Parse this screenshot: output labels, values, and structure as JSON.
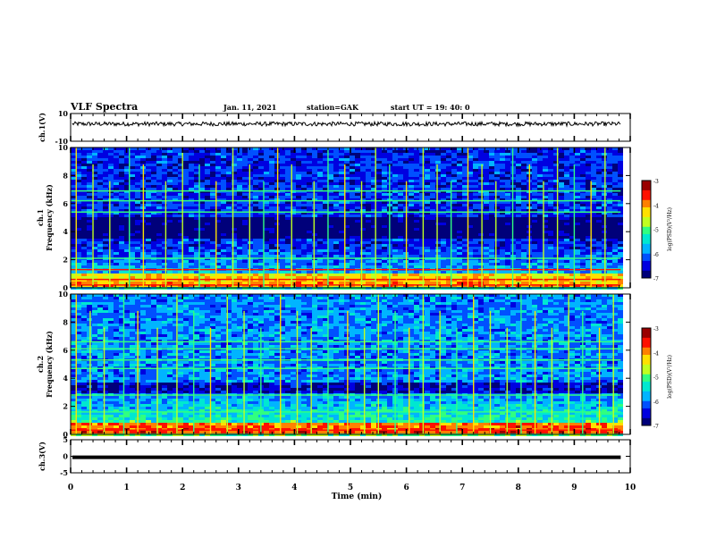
{
  "header": {
    "title": "VLF Spectra",
    "date": "Jan. 11, 2021",
    "station": "station=GAK",
    "start_time": "start UT =  19: 40: 0"
  },
  "chart_data": [
    {
      "type": "line",
      "panel": "ch1-waveform",
      "ylabel": "ch.1(V)",
      "ylim": [
        -10,
        10
      ],
      "yticks": [
        "10",
        "-10"
      ],
      "xlim": [
        0,
        10
      ],
      "baseline_v": 2.5,
      "noise_amplitude_v": 1.5,
      "line_color": "#000000"
    },
    {
      "type": "heatmap",
      "panel": "ch1-spectrogram",
      "ylabel": "ch.1\nFrequency (kHz)",
      "ylim": [
        0,
        10
      ],
      "yticks": [
        "0",
        "2",
        "4",
        "6",
        "8",
        "10"
      ],
      "xlim": [
        0,
        9.83
      ],
      "colorbar": {
        "label": "log(PSD)(V²/Hz)",
        "range": [
          -7,
          -3
        ],
        "ticks": [
          "-3",
          "-4",
          "-5",
          "-6",
          "-7"
        ]
      },
      "background_log_psd": -6.3,
      "dark_band_khz": [
        3.6,
        5.2
      ],
      "strong_low_band_khz": [
        0.1,
        1.2
      ],
      "horizontal_lines_khz": [
        0.2,
        0.6,
        1.3,
        2.1,
        5.4,
        6.2,
        6.9
      ],
      "impulses_min": [
        0.1,
        0.4,
        0.7,
        1.05,
        1.3,
        1.7,
        2.0,
        2.3,
        2.6,
        2.9,
        3.2,
        3.45,
        3.7,
        3.95,
        4.35,
        4.6,
        4.9,
        5.2,
        5.45,
        5.7,
        6.0,
        6.3,
        6.55,
        6.8,
        7.1,
        7.35,
        7.6,
        7.9,
        8.2,
        8.45,
        8.7,
        9.0,
        9.3,
        9.55
      ]
    },
    {
      "type": "heatmap",
      "panel": "ch2-spectrogram",
      "ylabel": "ch.2\nFrequency (kHz)",
      "ylim": [
        0,
        10
      ],
      "yticks": [
        "0",
        "2",
        "4",
        "6",
        "8",
        "10"
      ],
      "xlim": [
        0,
        9.83
      ],
      "colorbar": {
        "label": "log(PSD)(V²/Hz)",
        "range": [
          -7,
          -3
        ],
        "ticks": [
          "-3",
          "-4",
          "-5",
          "-6",
          "-7"
        ]
      },
      "background_log_psd": -5.9,
      "dark_band_khz": [
        3.0,
        3.8
      ],
      "strong_low_band_khz": [
        0.1,
        1.0
      ],
      "horizontal_lines_khz": [
        0.3,
        1.6,
        2.8,
        4.7,
        5.3,
        6.1,
        6.6
      ],
      "impulses_min": [
        0.1,
        0.35,
        0.6,
        0.95,
        1.2,
        1.55,
        1.9,
        2.2,
        2.5,
        2.8,
        3.1,
        3.4,
        3.75,
        4.05,
        4.3,
        4.6,
        4.95,
        5.25,
        5.5,
        5.8,
        6.05,
        6.3,
        6.6,
        6.9,
        7.2,
        7.5,
        7.8,
        8.05,
        8.3,
        8.6,
        8.9,
        9.15,
        9.45,
        9.7
      ]
    },
    {
      "type": "line",
      "panel": "ch3-waveform",
      "ylabel": "ch.3(V)",
      "ylim": [
        -5,
        5
      ],
      "yticks": [
        "5",
        "0",
        "-5"
      ],
      "xlim": [
        0,
        10
      ],
      "constant_v": -0.3,
      "line_color": "#000000"
    }
  ],
  "xaxis": {
    "label": "Time (min)",
    "ticks": [
      "0",
      "1",
      "2",
      "3",
      "4",
      "5",
      "6",
      "7",
      "8",
      "9",
      "10"
    ],
    "range": [
      0,
      10
    ]
  },
  "colormap": [
    "#00007a",
    "#0000e0",
    "#0050ff",
    "#00b4ff",
    "#00e8d0",
    "#30ff80",
    "#c0ff20",
    "#ffe000",
    "#ff8000",
    "#ff1000",
    "#9a0000"
  ]
}
